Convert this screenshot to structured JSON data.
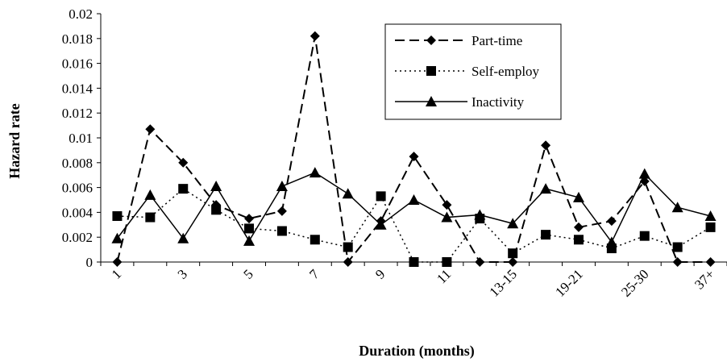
{
  "chart_data": {
    "type": "line",
    "title": "",
    "xlabel": "Duration (months)",
    "ylabel": "Hazard rate",
    "ylim": [
      0,
      0.02
    ],
    "yticks": [
      "0",
      "0.002",
      "0.004",
      "0.006",
      "0.008",
      "0.01",
      "0.012",
      "0.014",
      "0.016",
      "0.018",
      "0.02"
    ],
    "x_tick_labels": [
      "1",
      "3",
      "5",
      "7",
      "9",
      "11",
      "13-15",
      "19-21",
      "25-30",
      "37+"
    ],
    "grid": false,
    "legend_position": "top-right",
    "series": [
      {
        "name": "Part-time",
        "marker": "diamond",
        "line_style": "dashed",
        "values": [
          0,
          0.0107,
          0.008,
          0.0046,
          0.0035,
          0.0041,
          0.0182,
          0,
          0.0033,
          0.0085,
          0.0046,
          0,
          0,
          0.0094,
          0.0028,
          0.0033,
          0.0065,
          0,
          0
        ]
      },
      {
        "name": "Self-employ",
        "marker": "square",
        "line_style": "dotted",
        "values": [
          0.0037,
          0.0036,
          0.0059,
          0.0042,
          0.0027,
          0.0025,
          0.0018,
          0.0012,
          0.0053,
          0,
          0,
          0.0035,
          0.0007,
          0.0022,
          0.0018,
          0.0011,
          0.0021,
          0.0012,
          0.0028
        ]
      },
      {
        "name": "Inactivity",
        "marker": "triangle",
        "line_style": "solid",
        "values": [
          0.0019,
          0.0054,
          0.0019,
          0.0061,
          0.0017,
          0.0061,
          0.0072,
          0.0055,
          0.003,
          0.005,
          0.0036,
          0.0038,
          0.0031,
          0.0059,
          0.0052,
          0.0016,
          0.0071,
          0.0044,
          0.0037
        ]
      }
    ]
  }
}
